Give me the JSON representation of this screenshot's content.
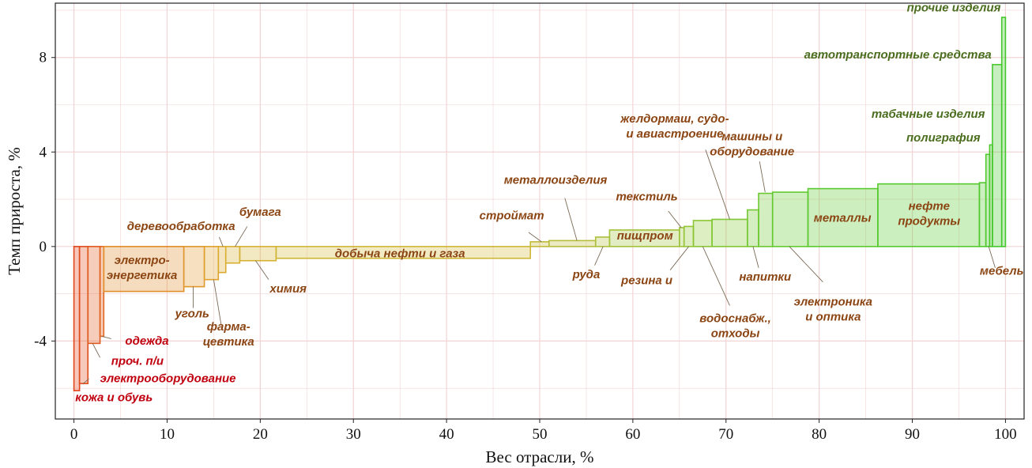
{
  "chart_data": {
    "type": "bar",
    "variant": "variable-width",
    "xlabel": "Вес отрасли, %",
    "ylabel": "Темп прироста, %",
    "xlim": [
      -2,
      102
    ],
    "ylim": [
      -7.3,
      10.3
    ],
    "xticks": [
      0,
      10,
      20,
      30,
      40,
      50,
      60,
      70,
      80,
      90,
      100
    ],
    "yticks": [
      -4,
      0,
      4,
      8
    ],
    "ytick_labels": [
      "-4",
      "0",
      "4",
      "8"
    ],
    "grid": true,
    "colors": {
      "negative": "#e0471b",
      "mid": "#d4b83a",
      "positive": "#44c92e",
      "grid": "#f2d4d4"
    },
    "bars": [
      {
        "x0": 0,
        "x1": 0.6,
        "value": -6.1,
        "color": "#e0451c"
      },
      {
        "x0": 0.6,
        "x1": 1.5,
        "value": -5.8,
        "color": "#e04d1c"
      },
      {
        "x0": 1.5,
        "x1": 2.8,
        "value": -4.1,
        "color": "#e05a1e"
      },
      {
        "x0": 2.8,
        "x1": 3.2,
        "value": -3.8,
        "color": "#e0651f"
      },
      {
        "x0": 3.2,
        "x1": 11.8,
        "value": -1.9,
        "color": "#e28c28"
      },
      {
        "x0": 11.8,
        "x1": 14.0,
        "value": -1.7,
        "color": "#e0982c"
      },
      {
        "x0": 14.0,
        "x1": 15.5,
        "value": -1.4,
        "color": "#e0a22e"
      },
      {
        "x0": 15.5,
        "x1": 16.3,
        "value": -1.1,
        "color": "#dcaa30"
      },
      {
        "x0": 16.3,
        "x1": 17.8,
        "value": -0.7,
        "color": "#d8b032"
      },
      {
        "x0": 17.8,
        "x1": 21.7,
        "value": -0.6,
        "color": "#d4b234"
      },
      {
        "x0": 21.7,
        "x1": 49.0,
        "value": -0.5,
        "color": "#cfb838"
      },
      {
        "x0": 49.0,
        "x1": 51.0,
        "value": 0.2,
        "color": "#c3bb3a"
      },
      {
        "x0": 51.0,
        "x1": 56.0,
        "value": 0.25,
        "color": "#b8be3c"
      },
      {
        "x0": 56.0,
        "x1": 57.5,
        "value": 0.4,
        "color": "#aebf3c"
      },
      {
        "x0": 57.5,
        "x1": 65.0,
        "value": 0.7,
        "color": "#a3c23a"
      },
      {
        "x0": 65.0,
        "x1": 65.5,
        "value": 0.8,
        "color": "#9ac338"
      },
      {
        "x0": 65.5,
        "x1": 66.5,
        "value": 0.85,
        "color": "#94c536"
      },
      {
        "x0": 66.5,
        "x1": 68.5,
        "value": 1.1,
        "color": "#8ac634"
      },
      {
        "x0": 68.5,
        "x1": 72.3,
        "value": 1.15,
        "color": "#80c733"
      },
      {
        "x0": 72.3,
        "x1": 73.5,
        "value": 1.55,
        "color": "#75c832"
      },
      {
        "x0": 73.5,
        "x1": 75.0,
        "value": 2.25,
        "color": "#6cc831"
      },
      {
        "x0": 75.0,
        "x1": 78.8,
        "value": 2.3,
        "color": "#63c930"
      },
      {
        "x0": 78.8,
        "x1": 86.3,
        "value": 2.45,
        "color": "#5bc92f"
      },
      {
        "x0": 86.3,
        "x1": 97.2,
        "value": 2.65,
        "color": "#55c92e"
      },
      {
        "x0": 97.2,
        "x1": 97.9,
        "value": 2.7,
        "color": "#52c92e"
      },
      {
        "x0": 97.9,
        "x1": 98.3,
        "value": 3.9,
        "color": "#4dc82d"
      },
      {
        "x0": 98.3,
        "x1": 98.6,
        "value": 4.3,
        "color": "#4ac82d"
      },
      {
        "x0": 98.6,
        "x1": 99.6,
        "value": 7.7,
        "color": "#46c82c"
      },
      {
        "x0": 99.6,
        "x1": 100.0,
        "value": 9.7,
        "color": "#43c72c"
      }
    ],
    "annotations": [
      {
        "lines": [
          "прочие изделия"
        ],
        "color": "#4a6d1e",
        "anchor": "end",
        "pos": [
          99.5,
          9.95
        ],
        "leader": null
      },
      {
        "lines": [
          "автотранспортные средства"
        ],
        "color": "#4a6d1e",
        "anchor": "end",
        "pos": [
          98.5,
          7.95
        ],
        "leader": null
      },
      {
        "lines": [
          "табачные изделия"
        ],
        "color": "#4a6d1e",
        "anchor": "end",
        "pos": [
          97.8,
          5.45
        ],
        "leader": null
      },
      {
        "lines": [
          "полиграфия"
        ],
        "color": "#4a6d1e",
        "anchor": "end",
        "pos": [
          97.3,
          4.45
        ],
        "leader": null
      },
      {
        "lines": [
          "мебель"
        ],
        "color": "#8b4513",
        "anchor": "middle",
        "pos": [
          99.6,
          -1.2
        ],
        "leader": [
          [
            98.9,
            -0.9
          ],
          [
            98.2,
            0
          ]
        ]
      },
      {
        "lines": [
          "нефте",
          "продукты"
        ],
        "color": "#8b4513",
        "anchor": "middle",
        "pos": [
          91.8,
          1.55
        ],
        "leader": null
      },
      {
        "lines": [
          "металлы"
        ],
        "color": "#8b4513",
        "anchor": "middle",
        "pos": [
          82.5,
          1.05
        ],
        "leader": null
      },
      {
        "lines": [
          "электроника",
          "и оптика"
        ],
        "color": "#8b4513",
        "anchor": "middle",
        "pos": [
          81.5,
          -2.5
        ],
        "leader": [
          [
            80.4,
            -1.5
          ],
          [
            76.8,
            0
          ]
        ]
      },
      {
        "lines": [
          "машины и",
          "оборудование"
        ],
        "color": "#8b4513",
        "anchor": "middle",
        "pos": [
          72.8,
          4.5
        ],
        "leader": [
          [
            73.6,
            3.6
          ],
          [
            74.2,
            2.3
          ]
        ]
      },
      {
        "lines": [
          "напитки"
        ],
        "color": "#8b4513",
        "anchor": "middle",
        "pos": [
          74.2,
          -1.45
        ],
        "leader": [
          [
            73.5,
            -0.9
          ],
          [
            72.9,
            0
          ]
        ]
      },
      {
        "lines": [
          "желдормаш, судо-",
          "и авиастроение"
        ],
        "color": "#8b4513",
        "anchor": "middle",
        "pos": [
          64.5,
          5.25
        ],
        "leader": [
          [
            67.8,
            4.1
          ],
          [
            70.4,
            1.15
          ]
        ]
      },
      {
        "lines": [
          "водоснабж.,",
          "отходы"
        ],
        "color": "#8b4513",
        "anchor": "middle",
        "pos": [
          71.0,
          -3.2
        ],
        "leader": [
          [
            70.4,
            -2.5
          ],
          [
            67.5,
            0
          ]
        ]
      },
      {
        "lines": [
          "текстиль"
        ],
        "color": "#8b4513",
        "anchor": "middle",
        "pos": [
          61.5,
          1.95
        ],
        "leader": [
          [
            63.8,
            1.5
          ],
          [
            65.2,
            0.8
          ]
        ]
      },
      {
        "lines": [
          "резина и"
        ],
        "color": "#8b4513",
        "anchor": "middle",
        "pos": [
          61.5,
          -1.6
        ],
        "leader": [
          [
            64.0,
            -1.0
          ],
          [
            66.0,
            0
          ]
        ]
      },
      {
        "lines": [
          "пищпром"
        ],
        "color": "#8b4513",
        "anchor": "middle",
        "pos": [
          61.3,
          0.3
        ],
        "leader": null
      },
      {
        "lines": [
          "металлоизделия"
        ],
        "color": "#8b4513",
        "anchor": "middle",
        "pos": [
          51.7,
          2.65
        ],
        "leader": [
          [
            52.7,
            2.05
          ],
          [
            54.0,
            0.25
          ]
        ]
      },
      {
        "lines": [
          "строймат"
        ],
        "color": "#8b4513",
        "anchor": "middle",
        "pos": [
          47.0,
          1.15
        ],
        "leader": [
          [
            48.8,
            0.6
          ],
          [
            50.2,
            0.2
          ]
        ]
      },
      {
        "lines": [
          "руда"
        ],
        "color": "#8b4513",
        "anchor": "middle",
        "pos": [
          55.0,
          -1.35
        ],
        "leader": [
          [
            55.9,
            -0.8
          ],
          [
            56.8,
            0
          ]
        ]
      },
      {
        "lines": [
          "добыча нефти и газа"
        ],
        "color": "#8b4513",
        "anchor": "middle",
        "pos": [
          35.0,
          -0.45
        ],
        "leader": null
      },
      {
        "lines": [
          "бумага"
        ],
        "color": "#8b4513",
        "anchor": "middle",
        "pos": [
          20.0,
          1.3
        ],
        "leader": [
          [
            18.6,
            0.85
          ],
          [
            17.3,
            0
          ]
        ]
      },
      {
        "lines": [
          "деревообработка"
        ],
        "color": "#8b4513",
        "anchor": "middle",
        "pos": [
          11.5,
          0.7
        ],
        "leader": [
          [
            15.6,
            0.4
          ],
          [
            16.0,
            0
          ]
        ]
      },
      {
        "lines": [
          "химия"
        ],
        "color": "#8b4513",
        "anchor": "middle",
        "pos": [
          23.0,
          -1.95
        ],
        "leader": [
          [
            20.9,
            -1.4
          ],
          [
            19.5,
            -0.6
          ]
        ]
      },
      {
        "lines": [
          "электро-",
          "энергетика"
        ],
        "color": "#8b4513",
        "anchor": "middle",
        "pos": [
          7.3,
          -0.75
        ],
        "leader": null
      },
      {
        "lines": [
          "уголь"
        ],
        "color": "#8b4513",
        "anchor": "middle",
        "pos": [
          12.7,
          -3.0
        ],
        "leader": [
          [
            12.8,
            -2.6
          ],
          [
            12.8,
            -1.7
          ]
        ]
      },
      {
        "lines": [
          "фарма-",
          "цевтика"
        ],
        "color": "#8b4513",
        "anchor": "middle",
        "pos": [
          16.6,
          -3.55
        ],
        "leader": [
          [
            15.8,
            -3.3
          ],
          [
            15.0,
            -1.4
          ]
        ]
      },
      {
        "lines": [
          "одежда"
        ],
        "color": "#c0000e",
        "anchor": "start",
        "pos": [
          5.5,
          -4.15
        ],
        "leader": [
          [
            4.0,
            -3.9
          ],
          [
            3.0,
            -3.8
          ]
        ]
      },
      {
        "lines": [
          "проч. п/и"
        ],
        "color": "#c0000e",
        "anchor": "start",
        "pos": [
          4.0,
          -5.0
        ],
        "leader": [
          [
            2.8,
            -4.7
          ],
          [
            2.0,
            -4.1
          ]
        ]
      },
      {
        "lines": [
          "электрооборудование"
        ],
        "color": "#c0000e",
        "anchor": "start",
        "pos": [
          2.8,
          -5.75
        ],
        "leader": [
          [
            1.6,
            -5.6
          ],
          [
            1.0,
            -5.8
          ]
        ]
      },
      {
        "lines": [
          "кожа и обувь"
        ],
        "color": "#c0000e",
        "anchor": "middle",
        "pos": [
          4.3,
          -6.55
        ],
        "leader": null
      }
    ]
  }
}
